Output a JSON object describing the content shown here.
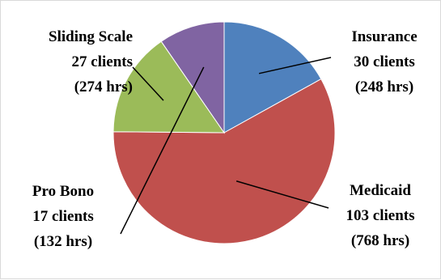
{
  "chart_data": {
    "type": "pie",
    "title": "",
    "slices": [
      {
        "name": "Insurance",
        "clients": 30,
        "hours": 248,
        "line1": "Insurance",
        "line2": "30 clients",
        "line3": "(248 hrs)",
        "color": "#4f81bd"
      },
      {
        "name": "Medicaid",
        "clients": 103,
        "hours": 768,
        "line1": "Medicaid",
        "line2": "103 clients",
        "line3": "(768 hrs)",
        "color": "#c0504d"
      },
      {
        "name": "Sliding Scale",
        "clients": 27,
        "hours": 274,
        "line1": "Sliding Scale",
        "line2": "27 clients",
        "line3": "(274 hrs)",
        "color": "#9bbb59"
      },
      {
        "name": "Pro Bono",
        "clients": 17,
        "hours": 132,
        "line1": "Pro Bono",
        "line2": "17 clients",
        "line3": "(132 hrs)",
        "color": "#8064a2"
      }
    ]
  }
}
